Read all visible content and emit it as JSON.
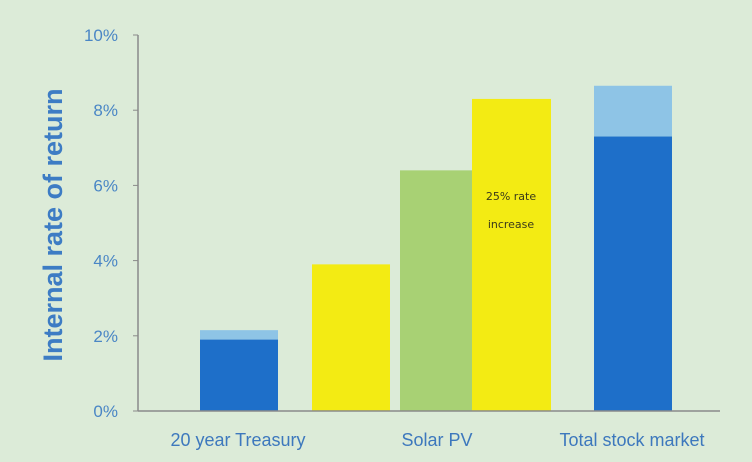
{
  "chart_data": {
    "type": "bar",
    "ylabel": "Internal rate of return",
    "xlabel": "",
    "ylim": [
      0,
      10
    ],
    "yticks": [
      "0%",
      "2%",
      "4%",
      "6%",
      "8%",
      "10%"
    ],
    "categories": [
      "20 year Treasury",
      "Solar PV",
      "Total stock market"
    ],
    "bars": [
      {
        "category": "20 year Treasury",
        "base": 1.9,
        "top": 2.15,
        "color": "#1e6fc9",
        "top_color": "#8ec4e6"
      },
      {
        "category": "Solar PV",
        "base": 3.9,
        "color": "#f3eb13"
      },
      {
        "category": "Solar PV",
        "base": 6.4,
        "color": "#a8d174"
      },
      {
        "category": "Solar PV",
        "base": 8.3,
        "color": "#f3eb13"
      },
      {
        "category": "Total stock market",
        "base": 7.3,
        "top": 8.65,
        "color": "#1e6fc9",
        "top_color": "#8ec4e6"
      }
    ],
    "annotation": "25% rate increase",
    "annotation_lines": [
      "25% rate",
      "increase"
    ],
    "grid": false
  },
  "colors": {
    "background": "#dcebd8",
    "axis": "#8a8a8a",
    "text": "#4a86c5"
  }
}
